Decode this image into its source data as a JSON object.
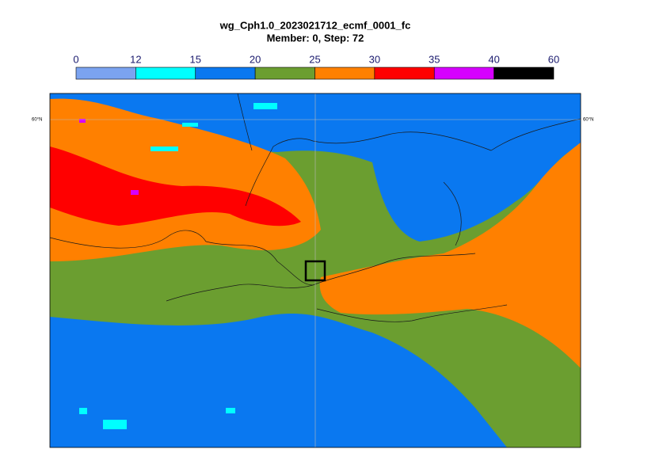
{
  "title": "wg_Cph1.0_2023021712_ecmf_0001_fc",
  "subtitle": "Member: 0, Step: 72",
  "colorbar": {
    "levels": [
      0,
      12,
      15,
      20,
      25,
      30,
      35,
      40,
      60
    ],
    "colors": [
      "#7ba3f0",
      "#00ffff",
      "#0a78f0",
      "#6b9e30",
      "#ff8000",
      "#ff0000",
      "#d600ff",
      "#000000"
    ]
  },
  "lat_labels": [
    "60°N",
    "60°N"
  ]
}
